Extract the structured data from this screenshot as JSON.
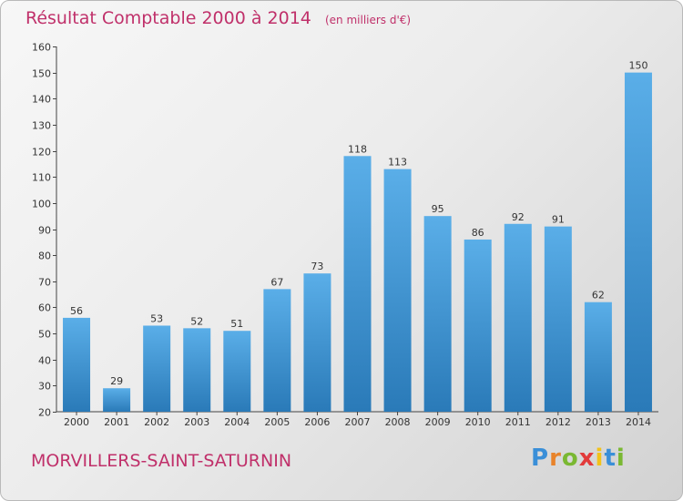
{
  "chart_data": {
    "type": "bar",
    "title": "Résultat Comptable 2000 à 2014",
    "subtitle": "(en milliers d'€)",
    "xlabel": "",
    "ylabel": "",
    "categories": [
      "2000",
      "2001",
      "2002",
      "2003",
      "2004",
      "2005",
      "2006",
      "2007",
      "2008",
      "2009",
      "2010",
      "2011",
      "2012",
      "2013",
      "2014"
    ],
    "values": [
      56,
      29,
      53,
      52,
      51,
      67,
      73,
      118,
      113,
      95,
      86,
      92,
      91,
      62,
      150
    ],
    "ylim": [
      20,
      160
    ],
    "yticks": [
      20,
      30,
      40,
      50,
      60,
      70,
      80,
      90,
      100,
      110,
      120,
      130,
      140,
      150,
      160
    ],
    "grid": false,
    "bar_color_top": "#5aaee8",
    "bar_color_bottom": "#2a7ab8"
  },
  "footer": {
    "commune": "MORVILLERS-SAINT-SATURNIN"
  },
  "brand": {
    "name": "Proxiti",
    "letters": [
      {
        "ch": "P",
        "color": "#3a8fd8"
      },
      {
        "ch": "r",
        "color": "#e8832a"
      },
      {
        "ch": "o",
        "color": "#7ab832"
      },
      {
        "ch": "x",
        "color": "#e23a3a"
      },
      {
        "ch": "i",
        "color": "#f2c21a"
      },
      {
        "ch": "t",
        "color": "#3a8fd8"
      },
      {
        "ch": "i",
        "color": "#7ab832"
      }
    ]
  },
  "colors": {
    "accent": "#c0306a",
    "axis": "#555555",
    "text": "#333333"
  }
}
